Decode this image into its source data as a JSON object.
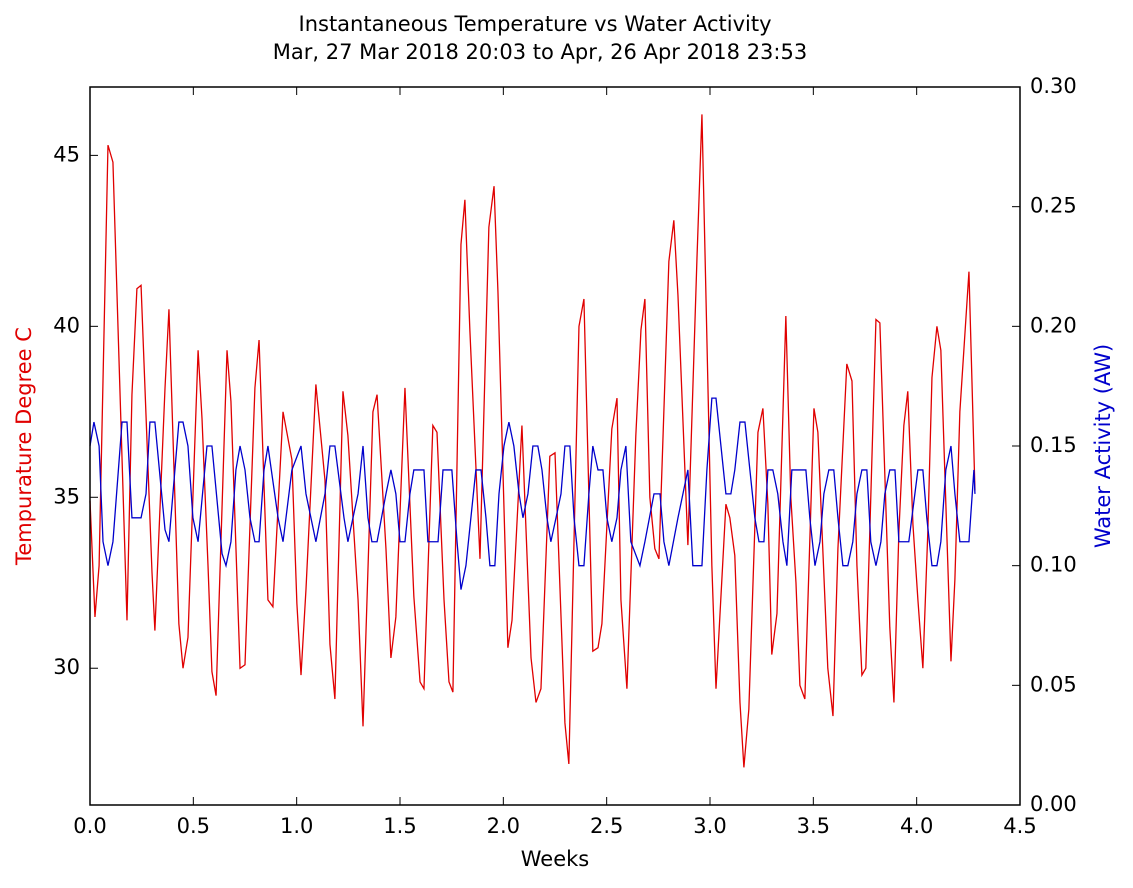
{
  "chart_data": {
    "type": "line",
    "title": "Instantaneous Temperature vs Water Activity",
    "subtitle": "Mar, 27 Mar 2018 20:03 to Apr, 26 Apr 2018 23:53",
    "x_label": "Weeks",
    "y_label": "Tempurature Degree C",
    "y2_label": "Water Activity (AW)",
    "xlim": [
      0,
      4.5
    ],
    "xticks": [
      {
        "value": 0,
        "label": "0.0"
      },
      0.5,
      {
        "value": 1,
        "label": "1.0"
      },
      1.5,
      {
        "value": 2,
        "label": "2.0"
      },
      2.5,
      {
        "value": 3,
        "label": "3.0"
      },
      3.5,
      {
        "value": 4,
        "label": "4.0"
      },
      4.5
    ],
    "ylim": [
      26,
      47
    ],
    "yticks": [
      30,
      35,
      40,
      45
    ],
    "y2lim": [
      0,
      0.3
    ],
    "y2ticks": [
      {
        "value": 0,
        "label": "0.00"
      },
      0.05,
      {
        "value": 0.1,
        "label": "0.10"
      },
      0.15,
      {
        "value": 0.2,
        "label": "0.20"
      },
      0.25,
      {
        "value": 0.3,
        "label": "0.30"
      }
    ],
    "series": [
      {
        "name": "Tempurature Degree C",
        "color": "#e00000",
        "axis": "y",
        "x": [
          0,
          0.024,
          0.044,
          0.087,
          0.111,
          0.179,
          0.203,
          0.227,
          0.247,
          0.3,
          0.314,
          0.363,
          0.382,
          0.43,
          0.45,
          0.474,
          0.523,
          0.542,
          0.571,
          0.59,
          0.61,
          0.663,
          0.682,
          0.726,
          0.75,
          0.798,
          0.818,
          0.861,
          0.885,
          0.934,
          0.977,
          1.001,
          1.021,
          1.045,
          1.093,
          1.137,
          1.161,
          1.185,
          1.224,
          1.248,
          1.297,
          1.321,
          1.369,
          1.389,
          1.432,
          1.456,
          1.48,
          1.524,
          1.567,
          1.597,
          1.616,
          1.659,
          1.679,
          1.713,
          1.737,
          1.756,
          1.795,
          1.814,
          1.838,
          1.887,
          1.93,
          1.955,
          1.974,
          2.022,
          2.042,
          2.09,
          2.134,
          2.158,
          2.182,
          2.225,
          2.25,
          2.298,
          2.317,
          2.366,
          2.39,
          2.433,
          2.458,
          2.477,
          2.525,
          2.55,
          2.569,
          2.598,
          2.641,
          2.666,
          2.685,
          2.709,
          2.733,
          2.753,
          2.801,
          2.825,
          2.845,
          2.893,
          2.937,
          2.961,
          2.98,
          3.009,
          3.029,
          3.077,
          3.096,
          3.12,
          3.145,
          3.164,
          3.188,
          3.232,
          3.256,
          3.28,
          3.299,
          3.324,
          3.367,
          3.391,
          3.416,
          3.435,
          3.459,
          3.503,
          3.522,
          3.57,
          3.595,
          3.619,
          3.662,
          3.687,
          3.711,
          3.735,
          3.754,
          3.803,
          3.822,
          3.87,
          3.89,
          3.914,
          3.938,
          3.957,
          3.982,
          4.006,
          4.03,
          4.054,
          4.074,
          4.098,
          4.117,
          4.166,
          4.185,
          4.209,
          4.253,
          4.282
        ],
        "values": [
          34.9,
          31.5,
          33,
          45.3,
          44.8,
          31.4,
          38,
          41.1,
          41.2,
          32.8,
          31.1,
          38.2,
          40.5,
          31.3,
          30,
          30.9,
          39.3,
          37.3,
          33,
          29.9,
          29.2,
          39.3,
          37.8,
          30,
          30.1,
          38.2,
          39.6,
          32,
          31.8,
          37.5,
          36.1,
          31.9,
          29.8,
          32.3,
          38.3,
          35.5,
          30.7,
          29.1,
          38.1,
          36.8,
          32,
          28.3,
          37.5,
          38,
          33.5,
          30.3,
          31.5,
          38.2,
          32.1,
          29.6,
          29.4,
          37.1,
          36.9,
          32,
          29.6,
          29.3,
          42.4,
          43.7,
          39.9,
          33.2,
          42.9,
          44.1,
          41,
          30.6,
          31.4,
          37.1,
          30.3,
          29,
          29.4,
          36.2,
          36.3,
          28.4,
          27.2,
          40,
          40.8,
          30.5,
          30.6,
          31.3,
          37,
          37.9,
          32,
          29.4,
          36.8,
          39.9,
          40.8,
          35,
          33.5,
          33.2,
          41.9,
          43.1,
          40.9,
          33.6,
          42,
          46.2,
          41,
          33,
          29.4,
          34.8,
          34.4,
          33.3,
          29,
          27.1,
          28.8,
          36.9,
          37.6,
          34.8,
          30.4,
          31.6,
          40.3,
          35,
          32.5,
          29.5,
          29.1,
          37.6,
          36.9,
          30,
          28.6,
          33.5,
          38.9,
          38.4,
          33,
          29.8,
          30,
          40.2,
          40.1,
          31.2,
          29,
          34,
          37.1,
          38.1,
          34.2,
          32,
          30,
          34,
          38.5,
          40,
          39.3,
          30.2,
          32.6,
          37.5,
          41.6,
          35.2
        ]
      },
      {
        "name": "Water Activity (AW)",
        "color": "#0000cc",
        "axis": "y2",
        "x": [
          0,
          0.019,
          0.044,
          0.063,
          0.087,
          0.111,
          0.155,
          0.179,
          0.203,
          0.247,
          0.271,
          0.29,
          0.314,
          0.363,
          0.382,
          0.43,
          0.45,
          0.474,
          0.498,
          0.523,
          0.566,
          0.59,
          0.639,
          0.658,
          0.682,
          0.706,
          0.726,
          0.75,
          0.774,
          0.798,
          0.818,
          0.842,
          0.861,
          0.91,
          0.934,
          0.977,
          1.021,
          1.045,
          1.093,
          1.137,
          1.161,
          1.185,
          1.229,
          1.248,
          1.297,
          1.321,
          1.345,
          1.364,
          1.389,
          1.432,
          1.456,
          1.48,
          1.5,
          1.524,
          1.548,
          1.567,
          1.616,
          1.635,
          1.684,
          1.708,
          1.751,
          1.776,
          1.795,
          1.819,
          1.843,
          1.867,
          1.892,
          1.916,
          1.935,
          1.959,
          1.979,
          2.003,
          2.027,
          2.051,
          2.076,
          2.095,
          2.119,
          2.143,
          2.167,
          2.187,
          2.211,
          2.23,
          2.255,
          2.279,
          2.298,
          2.322,
          2.342,
          2.366,
          2.39,
          2.414,
          2.433,
          2.458,
          2.482,
          2.501,
          2.525,
          2.55,
          2.569,
          2.593,
          2.617,
          2.661,
          2.685,
          2.729,
          2.758,
          2.777,
          2.801,
          2.845,
          2.893,
          2.917,
          2.961,
          2.985,
          3.009,
          3.029,
          3.053,
          3.077,
          3.101,
          3.12,
          3.145,
          3.169,
          3.193,
          3.217,
          3.237,
          3.261,
          3.28,
          3.304,
          3.328,
          3.353,
          3.372,
          3.396,
          3.464,
          3.483,
          3.508,
          3.532,
          3.551,
          3.575,
          3.599,
          3.619,
          3.643,
          3.667,
          3.691,
          3.711,
          3.735,
          3.759,
          3.778,
          3.803,
          3.827,
          3.846,
          3.87,
          3.895,
          3.914,
          3.962,
          4.006,
          4.03,
          4.049,
          4.074,
          4.098,
          4.117,
          4.141,
          4.166,
          4.185,
          4.209,
          4.253,
          4.277,
          4.282
        ],
        "values": [
          0.15,
          0.16,
          0.15,
          0.11,
          0.1,
          0.11,
          0.16,
          0.16,
          0.12,
          0.12,
          0.13,
          0.16,
          0.16,
          0.115,
          0.11,
          0.16,
          0.16,
          0.15,
          0.12,
          0.11,
          0.15,
          0.15,
          0.105,
          0.1,
          0.11,
          0.14,
          0.15,
          0.14,
          0.12,
          0.11,
          0.11,
          0.14,
          0.15,
          0.12,
          0.11,
          0.14,
          0.15,
          0.13,
          0.11,
          0.13,
          0.15,
          0.15,
          0.12,
          0.11,
          0.13,
          0.15,
          0.12,
          0.11,
          0.11,
          0.13,
          0.14,
          0.13,
          0.11,
          0.11,
          0.13,
          0.14,
          0.14,
          0.11,
          0.11,
          0.14,
          0.14,
          0.11,
          0.09,
          0.1,
          0.12,
          0.14,
          0.14,
          0.12,
          0.1,
          0.1,
          0.13,
          0.15,
          0.16,
          0.15,
          0.13,
          0.12,
          0.13,
          0.15,
          0.15,
          0.14,
          0.12,
          0.11,
          0.12,
          0.13,
          0.15,
          0.15,
          0.12,
          0.1,
          0.1,
          0.13,
          0.15,
          0.14,
          0.14,
          0.12,
          0.11,
          0.12,
          0.14,
          0.15,
          0.11,
          0.1,
          0.11,
          0.13,
          0.13,
          0.11,
          0.1,
          0.12,
          0.14,
          0.1,
          0.1,
          0.14,
          0.17,
          0.17,
          0.15,
          0.13,
          0.13,
          0.14,
          0.16,
          0.16,
          0.14,
          0.12,
          0.11,
          0.11,
          0.14,
          0.14,
          0.13,
          0.11,
          0.1,
          0.14,
          0.14,
          0.12,
          0.1,
          0.11,
          0.13,
          0.14,
          0.14,
          0.12,
          0.1,
          0.1,
          0.11,
          0.13,
          0.14,
          0.14,
          0.11,
          0.1,
          0.11,
          0.13,
          0.14,
          0.14,
          0.11,
          0.11,
          0.14,
          0.14,
          0.12,
          0.1,
          0.1,
          0.11,
          0.14,
          0.15,
          0.13,
          0.11,
          0.11,
          0.14,
          0.13
        ]
      }
    ]
  }
}
